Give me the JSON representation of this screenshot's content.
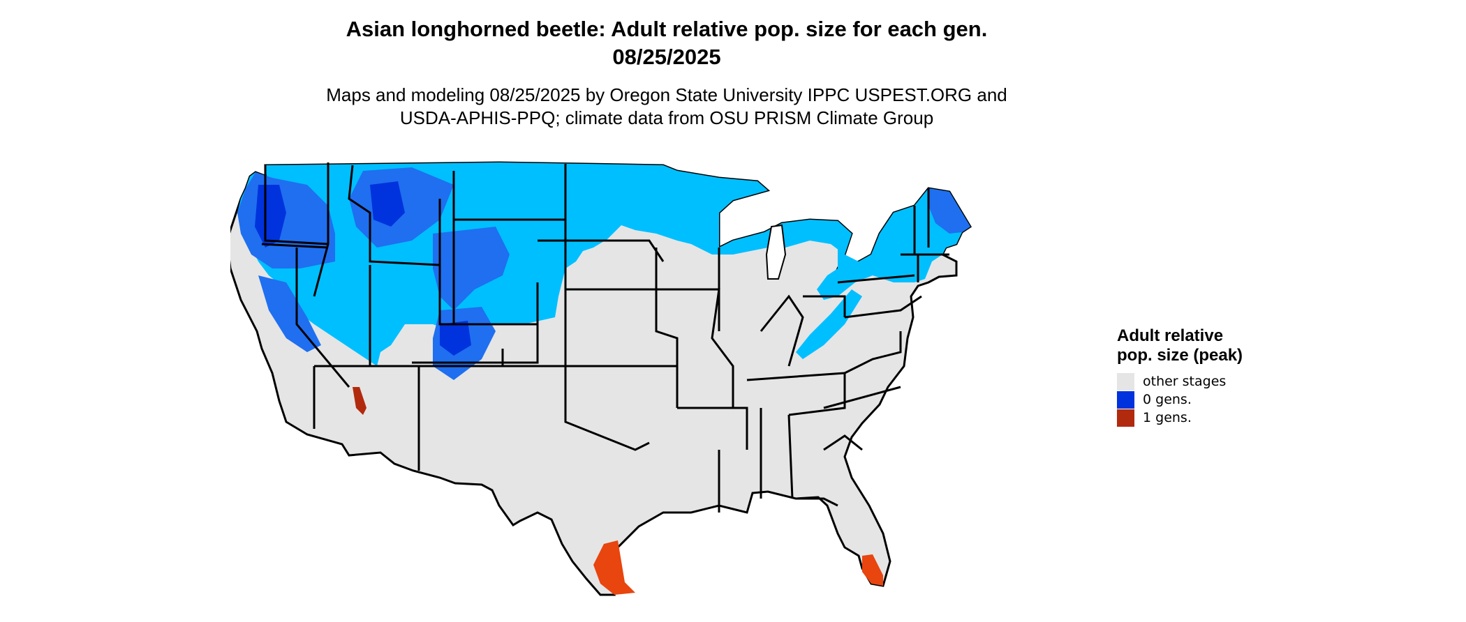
{
  "title": {
    "line1": "Asian longhorned beetle: Adult relative pop. size for each gen.",
    "line2": "08/25/2025"
  },
  "subtitle": {
    "line1": "Maps and modeling 08/25/2025 by Oregon State University IPPC USPEST.ORG and",
    "line2": "USDA-APHIS-PPQ; climate data from OSU PRISM Climate Group"
  },
  "legend": {
    "title": "Adult relative pop. size (peak)",
    "items": [
      {
        "label": "other stages",
        "color": "#e5e5e5"
      },
      {
        "label": "0 gens.",
        "color": "#0033dd"
      },
      {
        "label": "1 gens.",
        "color": "#b22a0e"
      }
    ]
  },
  "map": {
    "region": "Contiguous United States",
    "colors": {
      "other_stages": "#e5e5e5",
      "zero_gens_light": "#00bfff",
      "zero_gens_mid": "#1f6ff0",
      "zero_gens_dark": "#0033dd",
      "one_gen": "#e8450f",
      "border": "#000000"
    }
  }
}
